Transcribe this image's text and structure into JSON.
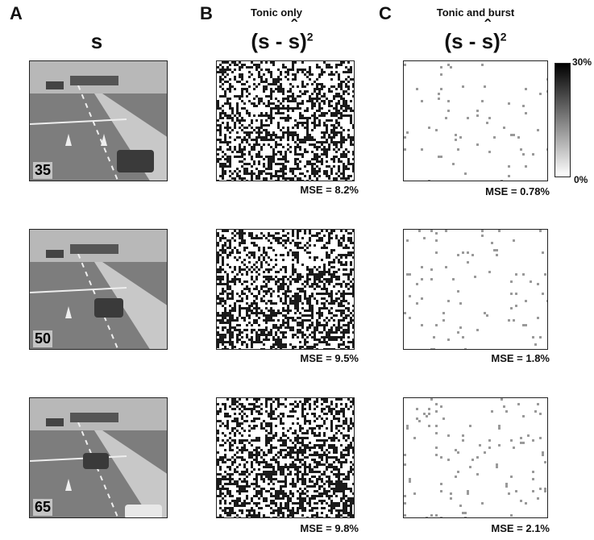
{
  "panels": {
    "a": {
      "letter": "A",
      "symbol": "s"
    },
    "b": {
      "letter": "B",
      "title": "Tonic only",
      "symbol_base": "(s - ",
      "symbol_hat": "s",
      "symbol_close": ")",
      "symbol_exp": "2"
    },
    "c": {
      "letter": "C",
      "title": "Tonic and burst",
      "symbol_base": "(s - ",
      "symbol_hat": "s",
      "symbol_close": ")",
      "symbol_exp": "2"
    }
  },
  "rows": [
    {
      "frame": "35",
      "mse_b": "MSE = 8.2%",
      "mse_c": "MSE = 0.78%"
    },
    {
      "frame": "50",
      "mse_b": "MSE = 9.5%",
      "mse_c": "MSE = 1.8%"
    },
    {
      "frame": "65",
      "mse_b": "MSE = 9.8%",
      "mse_c": "MSE = 2.1%"
    }
  ],
  "colorbar": {
    "max_label": "30%",
    "min_label": "0%"
  }
}
